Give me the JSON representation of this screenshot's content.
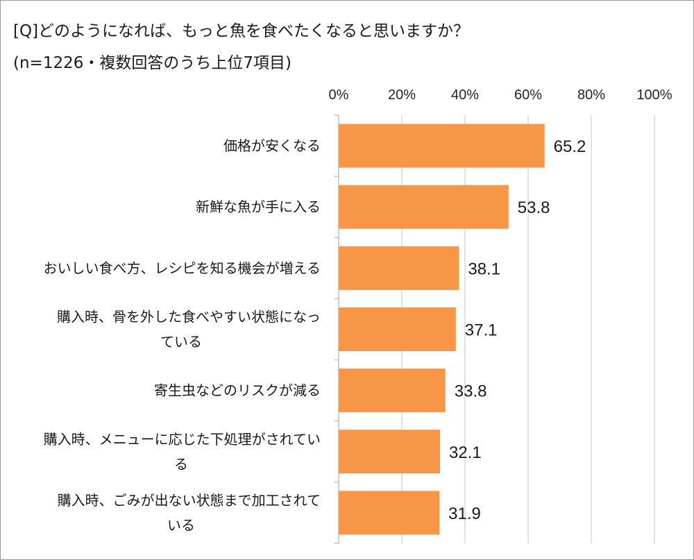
{
  "title": "[Q]どのようになれば、もっと魚を食べたくなると思いますか？",
  "subtitle": "(n=1226・複数回答のうち上位7項目)",
  "chart_data": {
    "type": "bar",
    "orientation": "horizontal",
    "categories": [
      [
        "価格が安くなる"
      ],
      [
        "新鮮な魚が手に入る"
      ],
      [
        "おいしい食べ方、レシピを知る機会が増える"
      ],
      [
        "購入時、骨を外した食べやすい状態になっ",
        "ている"
      ],
      [
        "寄生虫などのリスクが減る"
      ],
      [
        "購入時、メニューに応じた下処理がされてい",
        "る"
      ],
      [
        "購入時、ごみが出ない状態まで加工されて",
        "いる"
      ]
    ],
    "values": [
      65.2,
      53.8,
      38.1,
      37.1,
      33.8,
      32.1,
      31.9
    ],
    "value_labels": [
      "65.2",
      "53.8",
      "38.1",
      "37.1",
      "33.8",
      "32.1",
      "31.9"
    ],
    "xlim": [
      0,
      100
    ],
    "xticks": [
      "0%",
      "20%",
      "40%",
      "60%",
      "80%",
      "100%"
    ],
    "grid": true,
    "bar_color": "#f79646",
    "gridline_color": "#d9d9d9"
  }
}
